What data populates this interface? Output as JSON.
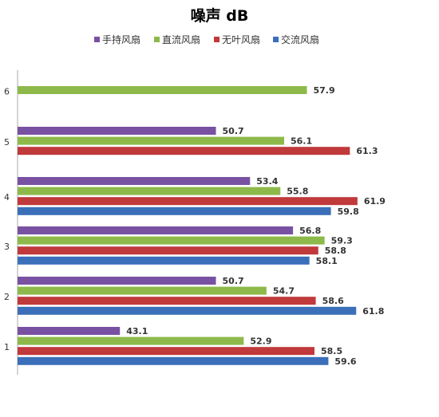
{
  "chart_data": {
    "type": "bar",
    "orientation": "horizontal",
    "title": "噪声 dB",
    "xlabel": "",
    "ylabel": "",
    "xlim": [
      35,
      65
    ],
    "grid": false,
    "legend_position": "top",
    "categories": [
      "1",
      "2",
      "3",
      "4",
      "5",
      "6"
    ],
    "series": [
      {
        "name": "手持风扇",
        "color": "#7951A2",
        "values": [
          43.1,
          50.7,
          56.8,
          53.4,
          50.7,
          null
        ]
      },
      {
        "name": "直流风扇",
        "color": "#8DB94A",
        "values": [
          52.9,
          54.7,
          59.3,
          55.8,
          56.1,
          57.9
        ]
      },
      {
        "name": "无叶风扇",
        "color": "#C0393B",
        "values": [
          58.5,
          58.6,
          58.8,
          61.9,
          61.3,
          null
        ]
      },
      {
        "name": "交流风扇",
        "color": "#3B6FB9",
        "values": [
          59.6,
          61.8,
          58.1,
          59.8,
          null,
          null
        ]
      }
    ]
  }
}
